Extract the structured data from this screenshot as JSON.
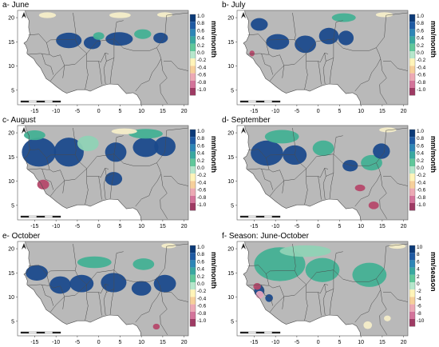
{
  "panels": [
    {
      "id": "a",
      "title": "a- June",
      "unit": "mm/month",
      "legend": [
        "1.0",
        "0.8",
        "0.6",
        "0.4",
        "0.2",
        "0.0",
        "-0.2",
        "-0.4",
        "-0.6",
        "-0.8",
        "-1.0"
      ]
    },
    {
      "id": "b",
      "title": "b- July",
      "unit": "mm/month",
      "legend": [
        "1.0",
        "0.8",
        "0.6",
        "0.4",
        "0.2",
        "0.0",
        "-0.2",
        "-0.4",
        "-0.6",
        "-0.8",
        "-1.0"
      ]
    },
    {
      "id": "c",
      "title": "c- August",
      "unit": "mm/month",
      "legend": [
        "1.0",
        "0.8",
        "0.6",
        "0.4",
        "0.2",
        "0.0",
        "-0.2",
        "-0.4",
        "-0.6",
        "-0.8",
        "-1.0"
      ]
    },
    {
      "id": "d",
      "title": "d- September",
      "unit": "mm/month",
      "legend": [
        "1.0",
        "0.8",
        "0.6",
        "0.4",
        "0.2",
        "0.0",
        "-0.2",
        "-0.4",
        "-0.6",
        "-0.8",
        "-1.0"
      ]
    },
    {
      "id": "e",
      "title": "e- October",
      "unit": "mm/month",
      "legend": [
        "1.0",
        "0.8",
        "0.6",
        "0.4",
        "0.2",
        "0.0",
        "-0.2",
        "-0.4",
        "-0.6",
        "-0.8",
        "-1.0"
      ]
    },
    {
      "id": "f",
      "title": "f- Season: June-October",
      "unit": "mm/season",
      "legend": [
        "10",
        "8",
        "6",
        "4",
        "2",
        "0",
        "-2",
        "-4",
        "-6",
        "-8",
        "-10"
      ]
    }
  ],
  "x_ticks": [
    "-15",
    "-10",
    "-5",
    "0",
    "5",
    "10",
    "15",
    "20"
  ],
  "y_ticks": [
    "20",
    "15",
    "10",
    "5"
  ],
  "colors": {
    "land": "#b9b9b9",
    "ocean": "#ffffff",
    "desert": "#f4edc8",
    "blue_dark": "#1b4a8c",
    "teal": "#43b093",
    "teal_light": "#8fd2b5",
    "red": "#b5486a",
    "pink": "#e6a4bd",
    "boundary": "#4a4a4a",
    "legend_scale": [
      "#0b3a78",
      "#1e5aa3",
      "#2e86b6",
      "#39a8a0",
      "#60c79a",
      "#b6e6cb",
      "#fff4b8",
      "#f6cf9a",
      "#eca9b4",
      "#d3739a",
      "#9e3a63"
    ]
  }
}
